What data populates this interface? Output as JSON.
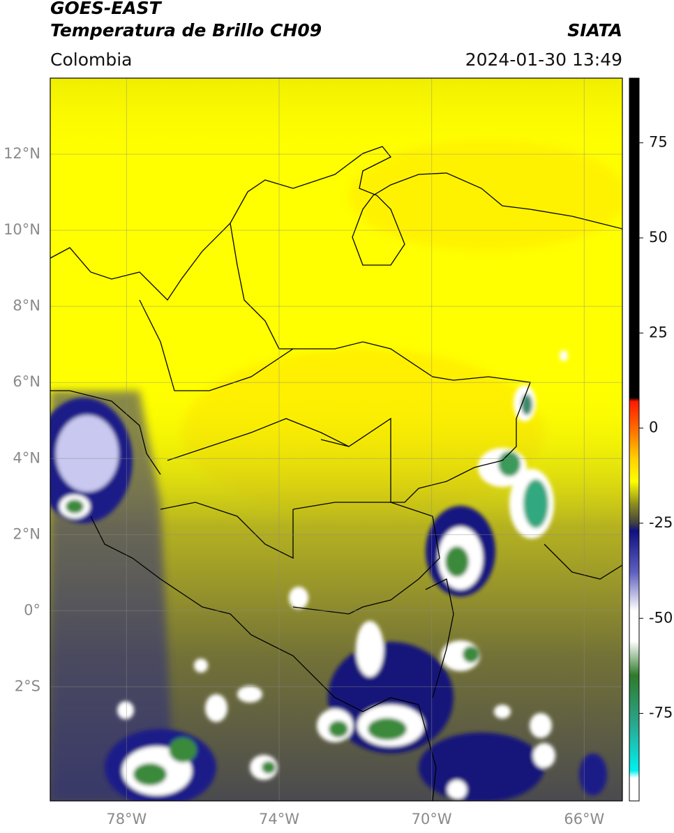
{
  "header": {
    "title": "GOES-EAST",
    "subtitle": "Temperatura de Brillo CH09",
    "source": "SIATA",
    "region": "Colombia",
    "datetime": "2024-01-30 13:49"
  },
  "map": {
    "xlim": [
      -80,
      -65
    ],
    "ylim": [
      -5,
      14
    ],
    "xticks": [
      {
        "value": -78,
        "label": "78°W"
      },
      {
        "value": -74,
        "label": "74°W"
      },
      {
        "value": -70,
        "label": "70°W"
      },
      {
        "value": -66,
        "label": "66°W"
      }
    ],
    "yticks": [
      {
        "value": 12,
        "label": "12°N"
      },
      {
        "value": 10,
        "label": "10°N"
      },
      {
        "value": 8,
        "label": "8°N"
      },
      {
        "value": 6,
        "label": "6°N"
      },
      {
        "value": 4,
        "label": "4°N"
      },
      {
        "value": 2,
        "label": "2°N"
      },
      {
        "value": 0,
        "label": "0°"
      },
      {
        "value": -2,
        "label": "2°S"
      }
    ],
    "grid": true
  },
  "colorbar": {
    "lim": [
      -98,
      92
    ],
    "ticks": [
      75,
      50,
      25,
      0,
      -25,
      -50,
      -75
    ],
    "colormap": [
      {
        "value": 92,
        "color": "#000000"
      },
      {
        "value": 8,
        "color": "#000000"
      },
      {
        "value": 7,
        "color": "#ff1a00"
      },
      {
        "value": 0,
        "color": "#ff6a00"
      },
      {
        "value": -8,
        "color": "#ffd000"
      },
      {
        "value": -14,
        "color": "#ffff00"
      },
      {
        "value": -20,
        "color": "#8c8c20"
      },
      {
        "value": -25,
        "color": "#404040"
      },
      {
        "value": -27,
        "color": "#101080"
      },
      {
        "value": -38,
        "color": "#6060c0"
      },
      {
        "value": -48,
        "color": "#ffffff"
      },
      {
        "value": -56,
        "color": "#ffffff"
      },
      {
        "value": -65,
        "color": "#2f7a2a"
      },
      {
        "value": -78,
        "color": "#2aa890"
      },
      {
        "value": -90,
        "color": "#00f0f0"
      },
      {
        "value": -92,
        "color": "#ffffff"
      },
      {
        "value": -98,
        "color": "#ffffff"
      }
    ]
  }
}
